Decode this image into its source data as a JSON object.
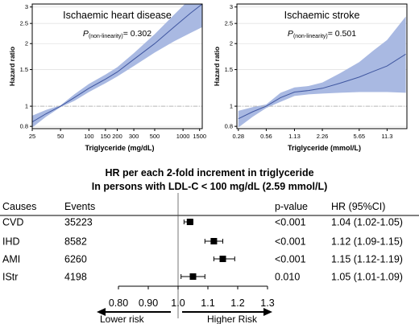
{
  "chart_data": [
    {
      "type": "line",
      "title": "Ischaemic heart disease",
      "annotation": {
        "prefix": "P",
        "subscript": "(non-linearity)",
        "value": "= 0.302"
      },
      "xlabel": "Triglyceride (mg/dL)",
      "ylabel": "Hazard ratio",
      "xscale": "log",
      "yscale": "log",
      "xlim": [
        25,
        1600
      ],
      "ylim": [
        0.78,
        3.1
      ],
      "xticks": [
        25,
        50,
        100,
        150,
        200,
        300,
        500,
        1000,
        1500
      ],
      "xtick_labels": [
        "25",
        "50",
        "100",
        "150",
        "200",
        "300",
        "500",
        "1000",
        "1500"
      ],
      "yticks": [
        0.8,
        1,
        1.5,
        2,
        2.5,
        3
      ],
      "ytick_labels": [
        "0.8",
        "1",
        "1.5",
        "2",
        "2.5",
        "3"
      ],
      "reference_line": 1,
      "series": [
        {
          "x": [
            25,
            35,
            50,
            70,
            100,
            150,
            200,
            300,
            500,
            800,
            1200,
            1600
          ],
          "y": [
            0.84,
            0.92,
            1.0,
            1.1,
            1.22,
            1.35,
            1.46,
            1.68,
            2.0,
            2.4,
            2.8,
            3.1
          ],
          "lower": [
            0.79,
            0.89,
            0.99,
            1.06,
            1.17,
            1.29,
            1.39,
            1.56,
            1.81,
            2.05,
            2.25,
            2.4
          ],
          "upper": [
            0.9,
            0.96,
            1.01,
            1.14,
            1.28,
            1.42,
            1.54,
            1.8,
            2.22,
            2.75,
            3.3,
            3.9
          ]
        }
      ]
    },
    {
      "type": "line",
      "title": "Ischaemic stroke",
      "annotation": {
        "prefix": "P",
        "subscript": "(non-linearity)",
        "value": "= 0.501"
      },
      "xlabel": "Triglyceride (mmol/L)",
      "ylabel": "Hazard ratio",
      "xscale": "log",
      "yscale": "log",
      "xlim": [
        0.27,
        18.5
      ],
      "ylim": [
        0.78,
        3.1
      ],
      "xticks": [
        0.28,
        0.56,
        1.13,
        2.26,
        5.65,
        11.3
      ],
      "xtick_labels": [
        "0.28",
        "0.56",
        "1.13",
        "2.26",
        "5.65",
        "11.3"
      ],
      "yticks": [
        0.8,
        1,
        1.5,
        2,
        2.5,
        3
      ],
      "ytick_labels": [
        "0.8",
        "1",
        "1.5",
        "2",
        "2.5",
        "3"
      ],
      "reference_line": 1,
      "series": [
        {
          "x": [
            0.28,
            0.4,
            0.56,
            0.8,
            1.13,
            1.6,
            2.26,
            3.5,
            5.65,
            8,
            11.3,
            18
          ],
          "y": [
            0.87,
            0.94,
            1.0,
            1.1,
            1.17,
            1.19,
            1.22,
            1.29,
            1.38,
            1.47,
            1.56,
            1.78
          ],
          "lower": [
            0.79,
            0.89,
            0.98,
            1.05,
            1.12,
            1.14,
            1.15,
            1.16,
            1.17,
            1.17,
            1.17,
            1.16
          ],
          "upper": [
            0.95,
            0.99,
            1.02,
            1.16,
            1.23,
            1.25,
            1.3,
            1.44,
            1.63,
            1.85,
            2.08,
            2.7
          ]
        }
      ]
    },
    {
      "type": "forest",
      "title_line1": "HR per each 2-fold increment in triglyceride",
      "title_line2": "In persons with LDL-C < 100 mg/dL (2.59 mmol/L)",
      "headers": {
        "cause": "Causes",
        "events": "Events",
        "pvalue": "p-value",
        "hr": "HR (95%CI)"
      },
      "rows": [
        {
          "cause": "CVD",
          "events": "35223",
          "pvalue": "<0.001",
          "hr_text": "1.04 (1.02-1.05)",
          "hr": 1.04,
          "lo": 1.02,
          "hi": 1.05
        },
        {
          "cause": "IHD",
          "events": "8582",
          "pvalue": "<0.001",
          "hr_text": "1.12 (1.09-1.15)",
          "hr": 1.12,
          "lo": 1.09,
          "hi": 1.15
        },
        {
          "cause": "AMI",
          "events": "6260",
          "pvalue": "<0.001",
          "hr_text": "1.15 (1.12-1.19)",
          "hr": 1.15,
          "lo": 1.12,
          "hi": 1.19
        },
        {
          "cause": "IStr",
          "events": "4198",
          "pvalue": "0.010",
          "hr_text": "1.05 (1.01-1.09)",
          "hr": 1.05,
          "lo": 1.01,
          "hi": 1.09
        }
      ],
      "xlim": [
        0.8,
        1.3
      ],
      "xticks": [
        0.8,
        0.9,
        1.0,
        1.1,
        1.2,
        1.3
      ],
      "xtick_labels": [
        "0.80",
        "0.90",
        "1.0",
        "1.1",
        "1.2",
        "1.3"
      ],
      "reference_line": 1.0,
      "arrow_left_label": "Lower  risk",
      "arrow_right_label": "Higher Risk"
    }
  ],
  "colors": {
    "band": "#a9b9e2",
    "line": "#3f56a0",
    "reference": "#b8b8b8",
    "axis": "#000000"
  }
}
